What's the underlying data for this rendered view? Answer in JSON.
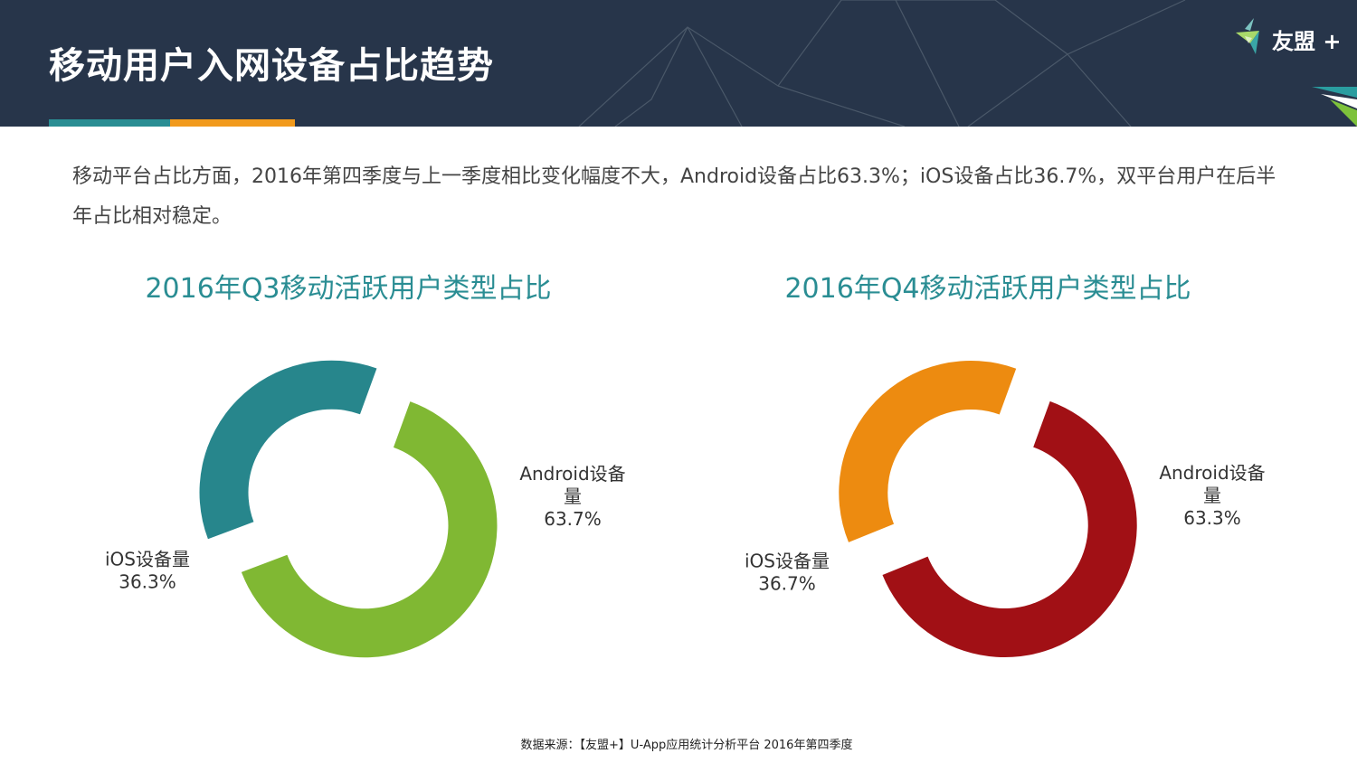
{
  "page": {
    "title": "移动用户入网设备占比趋势",
    "logo_text": "友盟 +",
    "intro": "移动平台占比方面，2016年第四季度与上一季度相比变化幅度不大，Android设备占比63.3%；iOS设备占比36.7%，双平台用户在后半年占比相对稳定。",
    "footer": "数据来源：【友盟+】U-App应用统计分析平台 2016年第四季度"
  },
  "colors": {
    "header_bg": "#27354a",
    "accent_teal": "#2a8d93",
    "accent_orange": "#f19a1c",
    "title_teal": "#2a8d93"
  },
  "chart_data": [
    {
      "type": "pie",
      "title": "2016年Q3移动活跃用户类型占比",
      "slices": [
        {
          "name": "Android设备量",
          "label_lines": [
            "Android设备",
            "量"
          ],
          "value": 63.7,
          "value_text": "63.7%",
          "color": "#80b833"
        },
        {
          "name": "iOS设备量",
          "label_lines": [
            "iOS设备量"
          ],
          "value": 36.3,
          "value_text": "36.3%",
          "color": "#27868c"
        }
      ]
    },
    {
      "type": "pie",
      "title": "2016年Q4移动活跃用户类型占比",
      "slices": [
        {
          "name": "Android设备量",
          "label_lines": [
            "Android设备",
            "量"
          ],
          "value": 63.3,
          "value_text": "63.3%",
          "color": "#a11015"
        },
        {
          "name": "iOS设备量",
          "label_lines": [
            "iOS设备量"
          ],
          "value": 36.7,
          "value_text": "36.7%",
          "color": "#ed8b10"
        }
      ]
    }
  ]
}
